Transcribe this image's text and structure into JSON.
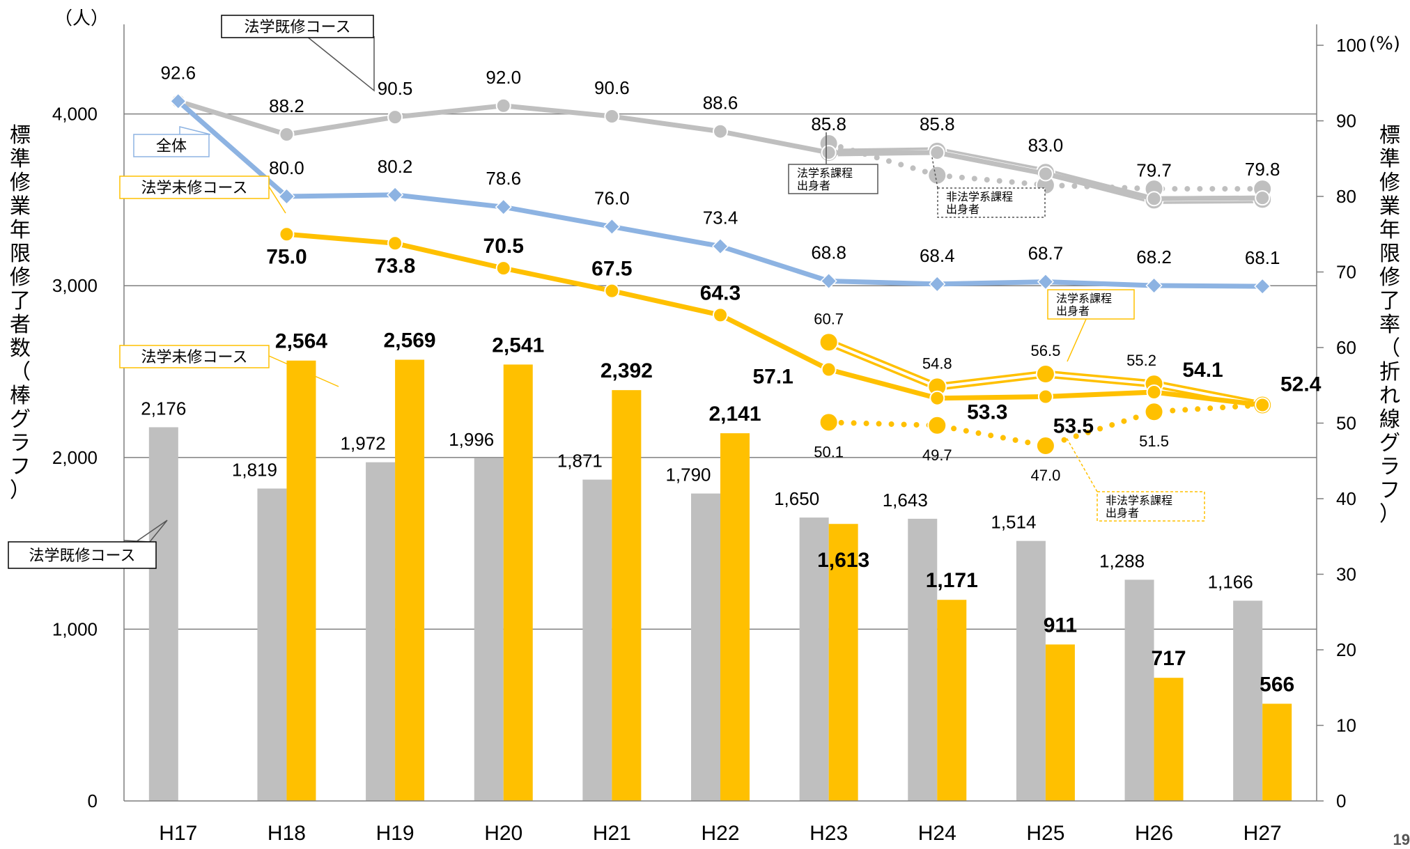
{
  "chart_data": {
    "type": "bar",
    "categories": [
      "H17",
      "H18",
      "H19",
      "H20",
      "H21",
      "H22",
      "H23",
      "H24",
      "H25",
      "H26",
      "H27"
    ],
    "y_left": {
      "label": "標準修業年限修了者数（棒グラフ）",
      "unit": "（人）",
      "ylim": [
        0,
        4400
      ],
      "ticks": [
        0,
        1000,
        2000,
        3000,
        4000
      ],
      "tick_labels": [
        "0",
        "1,000",
        "2,000",
        "3,000",
        "4,000"
      ]
    },
    "y_right": {
      "label": "標準修業年限修了率（折れ線グラフ）",
      "unit": "(%)",
      "ylim": [
        0,
        100
      ],
      "ticks": [
        0,
        10,
        20,
        30,
        40,
        50,
        60,
        70,
        80,
        90,
        100
      ],
      "tick_labels": [
        "0",
        "10",
        "20",
        "30",
        "40",
        "50",
        "60",
        "70",
        "80",
        "90",
        "100"
      ]
    },
    "grid": true,
    "bars": [
      {
        "name": "法学既修コース",
        "color": "#bfbfbf",
        "values": [
          2176,
          1819,
          1972,
          1996,
          1871,
          1790,
          1650,
          1643,
          1514,
          1288,
          1166
        ],
        "labels": [
          "2,176",
          "1,819",
          "1,972",
          "1,996",
          "1,871",
          "1,790",
          "1,650",
          "1,643",
          "1,514",
          "1,288",
          "1,166"
        ]
      },
      {
        "name": "法学未修コース",
        "color": "#ffc000",
        "values": [
          null,
          2564,
          2569,
          2541,
          2392,
          2141,
          1613,
          1171,
          911,
          717,
          566
        ],
        "labels": [
          "",
          "2,564",
          "2,569",
          "2,541",
          "2,392",
          "2,141",
          "1,613",
          "1,171",
          "911",
          "717",
          "566"
        ]
      }
    ],
    "lines": [
      {
        "name": "法学既修コース",
        "color": "#bfbfbf",
        "values": [
          92.6,
          88.2,
          90.5,
          92.0,
          90.6,
          88.6,
          85.8,
          85.8,
          83.0,
          79.7,
          79.8
        ],
        "labels": [
          "92.6",
          "88.2",
          "90.5",
          "92.0",
          "90.6",
          "88.6",
          "85.8",
          "85.8",
          "83.0",
          "79.7",
          "79.8"
        ]
      },
      {
        "name": "全体",
        "color": "#8db3e2",
        "values": [
          92.6,
          80.0,
          80.2,
          78.6,
          76.0,
          73.4,
          68.8,
          68.4,
          68.7,
          68.2,
          68.1
        ],
        "labels": [
          "",
          "80.0",
          "80.2",
          "78.6",
          "76.0",
          "73.4",
          "68.8",
          "68.4",
          "68.7",
          "68.2",
          "68.1"
        ]
      },
      {
        "name": "法学未修コース",
        "color": "#ffc000",
        "values": [
          null,
          75.0,
          73.8,
          70.5,
          67.5,
          64.3,
          57.1,
          53.3,
          53.5,
          54.1,
          52.4
        ],
        "labels": [
          "",
          "75.0",
          "73.8",
          "70.5",
          "67.5",
          "64.3",
          "57.1",
          "53.3",
          "53.5",
          "54.1",
          "52.4"
        ]
      },
      {
        "name": "法学系課程出身者",
        "group": "既修",
        "color": "#bfbfbf",
        "style": "double",
        "values": [
          null,
          null,
          null,
          null,
          null,
          null,
          85.8,
          86.0,
          83.2,
          79.5,
          79.6
        ]
      },
      {
        "name": "非法学系課程出身者",
        "group": "既修",
        "color": "#bfbfbf",
        "style": "dotted",
        "values": [
          null,
          null,
          null,
          null,
          null,
          null,
          87.0,
          82.8,
          81.5,
          81.0,
          81.0
        ]
      },
      {
        "name": "法学系課程出身者",
        "group": "未修",
        "color": "#ffc000",
        "style": "double",
        "values": [
          null,
          null,
          null,
          null,
          null,
          null,
          60.7,
          54.8,
          56.5,
          55.2,
          52.4
        ],
        "labels": [
          "",
          "",
          "",
          "",
          "",
          "",
          "60.7",
          "54.8",
          "56.5",
          "55.2",
          ""
        ]
      },
      {
        "name": "非法学系課程出身者",
        "group": "未修",
        "color": "#ffc000",
        "style": "dotted",
        "values": [
          null,
          null,
          null,
          null,
          null,
          null,
          50.1,
          49.7,
          47.0,
          51.5,
          52.4
        ],
        "labels": [
          "",
          "",
          "",
          "",
          "",
          "",
          "50.1",
          "49.7",
          "47.0",
          "51.5",
          ""
        ]
      }
    ],
    "callouts": {
      "kishu_line": "法学既修コース",
      "zentai": "全体",
      "mishu_line": "法学未修コース",
      "mishu_bar": "法学未修コース",
      "kishu_bar": "法学既修コース",
      "hougaku_kishu": "法学系課程\n出身者",
      "hihougaku_kishu": "非法学系課程\n出身者",
      "hougaku_mishu": "法学系課程\n出身者",
      "hihougaku_mishu": "非法学系課程\n出身者"
    }
  },
  "page_number": "19"
}
